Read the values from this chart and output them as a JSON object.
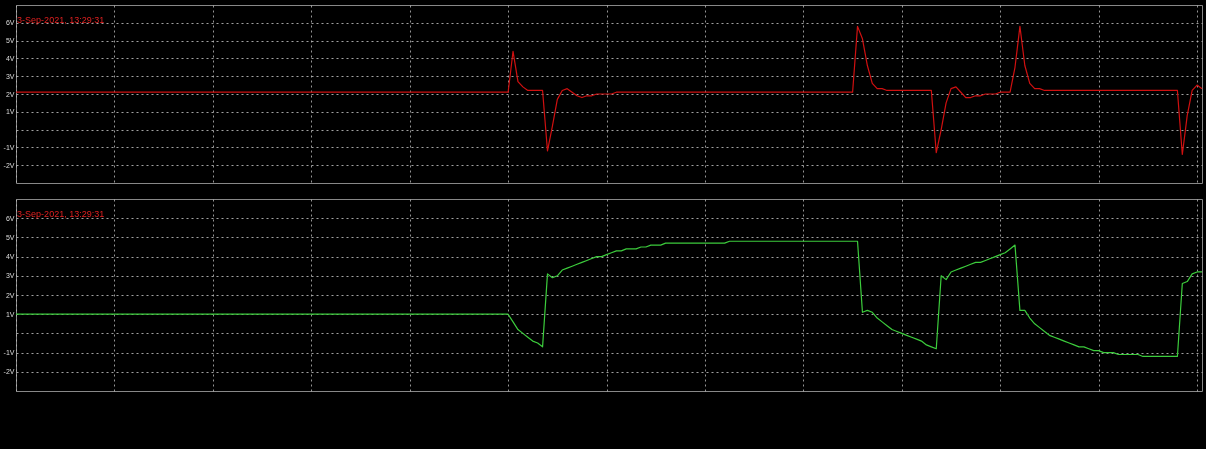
{
  "chart_data": [
    {
      "type": "line",
      "title": "3-Sep-2021, 13:29:31",
      "categories": [
        null,
        null,
        null,
        null,
        null,
        null,
        null,
        null,
        null,
        null,
        null,
        null,
        null,
        null,
        null,
        null,
        null,
        null,
        null,
        null,
        null,
        null,
        null,
        null,
        null,
        null,
        null,
        null,
        null,
        null,
        null,
        null,
        null,
        null,
        null,
        null,
        null,
        null,
        null,
        null,
        null,
        null,
        null,
        null,
        null,
        null,
        null,
        null,
        null,
        null,
        null,
        null,
        null,
        null,
        null,
        null,
        null,
        null,
        null,
        null,
        null,
        null,
        null,
        null,
        null,
        null,
        null,
        null,
        null,
        null,
        null,
        null,
        null,
        null,
        null,
        null,
        null,
        null,
        null,
        null,
        null,
        null,
        null,
        null,
        null,
        null,
        null,
        null,
        null,
        null,
        null,
        null,
        null,
        null,
        null,
        null,
        null,
        null,
        null,
        null,
        null,
        null,
        null,
        null,
        null,
        null,
        null,
        null,
        null,
        null,
        null,
        null,
        null,
        null,
        null,
        null,
        null,
        null,
        null,
        null,
        null,
        null,
        null,
        null,
        null,
        null,
        null,
        null,
        null,
        null,
        null,
        null,
        null,
        null,
        null,
        null,
        null,
        null,
        null,
        null,
        null,
        null,
        null,
        null,
        null,
        null,
        null,
        null,
        null,
        null,
        null,
        null,
        null,
        null,
        null,
        null,
        null,
        null,
        null,
        null,
        null,
        null,
        null,
        null,
        null,
        null,
        null,
        null,
        null,
        null,
        null,
        null,
        null,
        null,
        null,
        null,
        null,
        null,
        null,
        null,
        null,
        null,
        null,
        null,
        null,
        null,
        null,
        null,
        null,
        null,
        null,
        null,
        null,
        null,
        null,
        null,
        null,
        null,
        null,
        null,
        null,
        null,
        null,
        null,
        null,
        null,
        null,
        null,
        null,
        null,
        null,
        null,
        null,
        null,
        null,
        null,
        null,
        null,
        null,
        null,
        null,
        null,
        null,
        null,
        null,
        null,
        null,
        null,
        null,
        null,
        null,
        null,
        null,
        null,
        null,
        null,
        null,
        null,
        null,
        null,
        null,
        null
      ],
      "series": [
        {
          "color": "#d01010",
          "values": [
            2.1,
            2.1,
            2.1,
            2.1,
            2.1,
            2.1,
            2.1,
            2.1,
            2.1,
            2.1,
            2.1,
            2.1,
            2.1,
            2.1,
            2.1,
            2.1,
            2.1,
            2.1,
            2.1,
            2.1,
            2.1,
            2.1,
            2.1,
            2.1,
            2.1,
            2.1,
            2.1,
            2.1,
            2.1,
            2.1,
            2.1,
            2.1,
            2.1,
            2.1,
            2.1,
            2.1,
            2.1,
            2.1,
            2.1,
            2.1,
            2.1,
            2.1,
            2.1,
            2.1,
            2.1,
            2.1,
            2.1,
            2.1,
            2.1,
            2.1,
            2.1,
            2.1,
            2.1,
            2.1,
            2.1,
            2.1,
            2.1,
            2.1,
            2.1,
            2.1,
            2.1,
            2.1,
            2.1,
            2.1,
            2.1,
            2.1,
            2.1,
            2.1,
            2.1,
            2.1,
            2.1,
            2.1,
            2.1,
            2.1,
            2.1,
            2.1,
            2.1,
            2.1,
            2.1,
            2.1,
            2.1,
            2.1,
            2.1,
            2.1,
            2.1,
            2.1,
            2.1,
            2.1,
            2.1,
            2.1,
            2.1,
            2.1,
            2.1,
            2.1,
            2.1,
            2.1,
            2.1,
            2.1,
            2.1,
            2.1,
            2.1,
            4.4,
            2.7,
            2.4,
            2.2,
            2.2,
            2.2,
            2.2,
            -1.2,
            0.2,
            1.7,
            2.2,
            2.3,
            2.1,
            1.9,
            1.8,
            1.9,
            1.9,
            2.0,
            2.0,
            2.0,
            2.0,
            2.1,
            2.1,
            2.1,
            2.1,
            2.1,
            2.1,
            2.1,
            2.1,
            2.1,
            2.1,
            2.1,
            2.1,
            2.1,
            2.1,
            2.1,
            2.1,
            2.1,
            2.1,
            2.1,
            2.1,
            2.1,
            2.1,
            2.1,
            2.1,
            2.1,
            2.1,
            2.1,
            2.1,
            2.1,
            2.1,
            2.1,
            2.1,
            2.1,
            2.1,
            2.1,
            2.1,
            2.1,
            2.1,
            2.1,
            2.1,
            2.1,
            2.1,
            2.1,
            2.1,
            2.1,
            2.1,
            2.1,
            2.1,
            2.1,
            5.8,
            5.1,
            3.6,
            2.6,
            2.3,
            2.3,
            2.2,
            2.2,
            2.2,
            2.2,
            2.2,
            2.2,
            2.2,
            2.2,
            2.2,
            2.2,
            -1.3,
            0.0,
            1.5,
            2.3,
            2.4,
            2.1,
            1.8,
            1.8,
            1.9,
            1.9,
            2.0,
            2.0,
            2.0,
            2.1,
            2.1,
            2.1,
            3.5,
            5.8,
            3.6,
            2.6,
            2.3,
            2.3,
            2.2,
            2.2,
            2.2,
            2.2,
            2.2,
            2.2,
            2.2,
            2.2,
            2.2,
            2.2,
            2.2,
            2.2,
            2.2,
            2.2,
            2.2,
            2.2,
            2.2,
            2.2,
            2.2,
            2.2,
            2.2,
            2.2,
            2.2,
            2.2,
            2.2,
            2.2,
            2.2,
            2.2,
            -1.4,
            0.8,
            2.2,
            2.5,
            2.3
          ]
        }
      ],
      "ylim": [
        -3,
        7
      ],
      "yticks": [
        {
          "value": -2,
          "label": "-2V"
        },
        {
          "value": -1,
          "label": "-1V"
        },
        {
          "value": 0,
          "label": null
        },
        {
          "value": 1,
          "label": "1V"
        },
        {
          "value": 2,
          "label": "2V"
        },
        {
          "value": 3,
          "label": "3V"
        },
        {
          "value": 4,
          "label": "4V"
        },
        {
          "value": 5,
          "label": "5V"
        },
        {
          "value": 6,
          "label": "6V"
        }
      ],
      "grid": true,
      "tick_labels": "y"
    },
    {
      "type": "line",
      "title": "3-Sep-2021, 13:29:31",
      "categories": [
        null,
        null,
        null,
        null,
        null,
        null,
        null,
        null,
        null,
        null,
        null,
        null,
        null,
        null,
        null,
        null,
        null,
        null,
        null,
        null,
        null,
        null,
        null,
        null,
        null,
        null,
        null,
        null,
        null,
        null,
        null,
        null,
        null,
        null,
        null,
        null,
        null,
        null,
        null,
        null,
        null,
        null,
        null,
        null,
        null,
        null,
        null,
        null,
        null,
        null,
        null,
        null,
        null,
        null,
        null,
        null,
        null,
        null,
        null,
        null,
        null,
        null,
        null,
        null,
        null,
        null,
        null,
        null,
        null,
        null,
        null,
        null,
        null,
        null,
        null,
        null,
        null,
        null,
        null,
        null,
        null,
        null,
        null,
        null,
        null,
        null,
        null,
        null,
        null,
        null,
        null,
        null,
        null,
        null,
        null,
        null,
        null,
        null,
        null,
        null,
        null,
        null,
        null,
        null,
        null,
        null,
        null,
        null,
        null,
        null,
        null,
        null,
        null,
        null,
        null,
        null,
        null,
        null,
        null,
        null,
        null,
        null,
        null,
        null,
        null,
        null,
        null,
        null,
        null,
        null,
        null,
        null,
        null,
        null,
        null,
        null,
        null,
        null,
        null,
        null,
        null,
        null,
        null,
        null,
        null,
        null,
        null,
        null,
        null,
        null,
        null,
        null,
        null,
        null,
        null,
        null,
        null,
        null,
        null,
        null,
        null,
        null,
        null,
        null,
        null,
        null,
        null,
        null,
        null,
        null,
        null,
        null,
        null,
        null,
        null,
        null,
        null,
        null,
        null,
        null,
        null,
        null,
        null,
        null,
        null,
        null,
        null,
        null,
        null,
        null,
        null,
        null,
        null,
        null,
        null,
        null,
        null,
        null,
        null,
        null,
        null,
        null,
        null,
        null,
        null,
        null,
        null,
        null,
        null,
        null,
        null,
        null,
        null,
        null,
        null,
        null,
        null,
        null,
        null,
        null,
        null,
        null,
        null,
        null,
        null,
        null,
        null,
        null,
        null,
        null,
        null,
        null,
        null,
        null,
        null,
        null,
        null,
        null,
        null,
        null,
        null,
        null
      ],
      "series": [
        {
          "color": "#3ccc3c",
          "values": [
            1.0,
            1.0,
            1.0,
            1.0,
            1.0,
            1.0,
            1.0,
            1.0,
            1.0,
            1.0,
            1.0,
            1.0,
            1.0,
            1.0,
            1.0,
            1.0,
            1.0,
            1.0,
            1.0,
            1.0,
            1.0,
            1.0,
            1.0,
            1.0,
            1.0,
            1.0,
            1.0,
            1.0,
            1.0,
            1.0,
            1.0,
            1.0,
            1.0,
            1.0,
            1.0,
            1.0,
            1.0,
            1.0,
            1.0,
            1.0,
            1.0,
            1.0,
            1.0,
            1.0,
            1.0,
            1.0,
            1.0,
            1.0,
            1.0,
            1.0,
            1.0,
            1.0,
            1.0,
            1.0,
            1.0,
            1.0,
            1.0,
            1.0,
            1.0,
            1.0,
            1.0,
            1.0,
            1.0,
            1.0,
            1.0,
            1.0,
            1.0,
            1.0,
            1.0,
            1.0,
            1.0,
            1.0,
            1.0,
            1.0,
            1.0,
            1.0,
            1.0,
            1.0,
            1.0,
            1.0,
            1.0,
            1.0,
            1.0,
            1.0,
            1.0,
            1.0,
            1.0,
            1.0,
            1.0,
            1.0,
            1.0,
            1.0,
            1.0,
            1.0,
            1.0,
            1.0,
            1.0,
            1.0,
            1.0,
            1.0,
            1.0,
            0.6,
            0.2,
            0.0,
            -0.2,
            -0.4,
            -0.5,
            -0.7,
            3.1,
            2.9,
            3.0,
            3.3,
            3.4,
            3.5,
            3.6,
            3.7,
            3.8,
            3.9,
            4.0,
            4.0,
            4.1,
            4.2,
            4.3,
            4.3,
            4.4,
            4.4,
            4.4,
            4.5,
            4.5,
            4.6,
            4.6,
            4.6,
            4.7,
            4.7,
            4.7,
            4.7,
            4.7,
            4.7,
            4.7,
            4.7,
            4.7,
            4.7,
            4.7,
            4.7,
            4.7,
            4.8,
            4.8,
            4.8,
            4.8,
            4.8,
            4.8,
            4.8,
            4.8,
            4.8,
            4.8,
            4.8,
            4.8,
            4.8,
            4.8,
            4.8,
            4.8,
            4.8,
            4.8,
            4.8,
            4.8,
            4.8,
            4.8,
            4.8,
            4.8,
            4.8,
            4.8,
            4.8,
            1.1,
            1.2,
            1.1,
            0.8,
            0.6,
            0.4,
            0.2,
            0.1,
            0.0,
            -0.1,
            -0.2,
            -0.3,
            -0.4,
            -0.6,
            -0.7,
            -0.8,
            3.0,
            2.8,
            3.2,
            3.3,
            3.4,
            3.5,
            3.6,
            3.7,
            3.7,
            3.8,
            3.9,
            4.0,
            4.1,
            4.2,
            4.4,
            4.6,
            1.2,
            1.2,
            0.8,
            0.5,
            0.3,
            0.1,
            -0.1,
            -0.2,
            -0.3,
            -0.4,
            -0.5,
            -0.6,
            -0.7,
            -0.7,
            -0.8,
            -0.9,
            -0.9,
            -1.0,
            -1.0,
            -1.0,
            -1.1,
            -1.1,
            -1.1,
            -1.1,
            -1.1,
            -1.2,
            -1.2,
            -1.2,
            -1.2,
            -1.2,
            -1.2,
            -1.2,
            -1.2,
            2.6,
            2.7,
            3.1,
            3.2,
            3.2
          ]
        }
      ],
      "ylim": [
        -3,
        7
      ],
      "yticks": [
        {
          "value": -2,
          "label": "-2V"
        },
        {
          "value": -1,
          "label": "-1V"
        },
        {
          "value": 0,
          "label": null
        },
        {
          "value": 1,
          "label": "1V"
        },
        {
          "value": 2,
          "label": "2V"
        },
        {
          "value": 3,
          "label": "3V"
        },
        {
          "value": 4,
          "label": "4V"
        },
        {
          "value": 5,
          "label": "5V"
        },
        {
          "value": 6,
          "label": "6V"
        }
      ],
      "grid": true,
      "tick_labels": "y"
    }
  ]
}
